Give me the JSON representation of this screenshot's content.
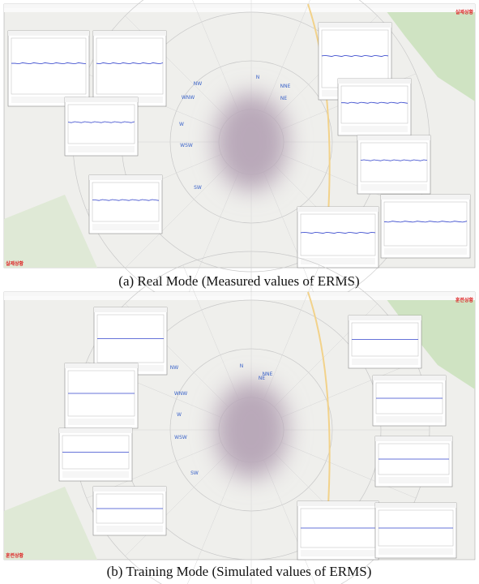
{
  "panels": [
    {
      "caption": "(a) Real Mode (Measured values of ERMS)",
      "mode_label": "실제상황",
      "compass": [
        "N",
        "NNE",
        "NE",
        "NW",
        "WNW",
        "W",
        "WSW",
        "SW"
      ]
    },
    {
      "caption": "(b) Training Mode (Simulated values of ERMS)",
      "mode_label": "훈련상황",
      "compass": [
        "N",
        "NNE",
        "NE",
        "NW",
        "WNW",
        "W",
        "WSW",
        "SW"
      ]
    }
  ]
}
